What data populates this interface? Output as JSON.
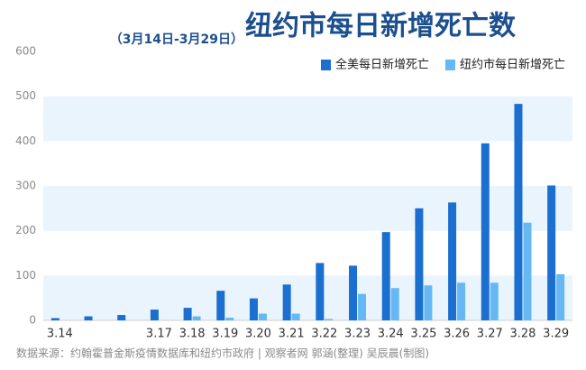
{
  "chart_data": {
    "type": "bar",
    "title": "纽约市每日新增死亡数",
    "subtitle": "（3月14日-3月29日）",
    "source": "数据来源：约翰霍普金斯疫情数据库和纽约市政府  |  观察者网 郭涵(整理)  吴辰晨(制图)",
    "categories": [
      "3.14",
      null,
      null,
      "3.17",
      "3.18",
      "3.19",
      "3.20",
      "3.21",
      "3.22",
      "3.23",
      "3.24",
      "3.25",
      "3.26",
      "3.27",
      "3.28",
      "3.29"
    ],
    "series": [
      {
        "name": "全美每日新增死亡",
        "color": "#1a6fd0",
        "values": [
          5,
          9,
          12,
          24,
          28,
          66,
          49,
          80,
          128,
          122,
          197,
          250,
          263,
          395,
          483,
          301
        ]
      },
      {
        "name": "纽约市每日新增死亡",
        "color": "#66b8f5",
        "values": [
          0,
          0,
          0,
          0,
          9,
          6,
          15,
          15,
          3,
          59,
          72,
          78,
          84,
          84,
          218,
          103
        ]
      }
    ],
    "ylim": [
      0,
      600
    ],
    "yticks": [
      0,
      100,
      200,
      300,
      400,
      500,
      600
    ],
    "grid": "bands",
    "legend": "top-right"
  }
}
